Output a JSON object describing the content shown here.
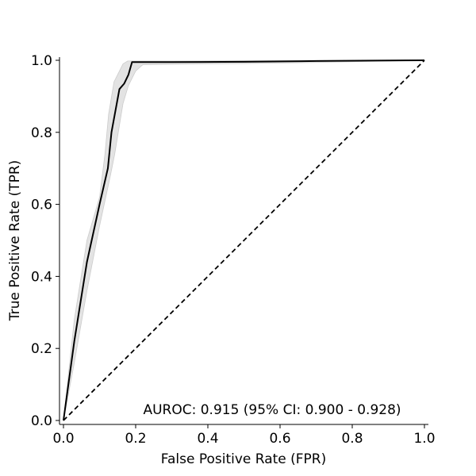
{
  "chart_data": {
    "type": "line",
    "title": "",
    "xlabel": "False Positive Rate (FPR)",
    "ylabel": "True Positive Rate (TPR)",
    "xlim": [
      0,
      1
    ],
    "ylim": [
      0,
      1
    ],
    "xticks": [
      "0.0",
      "0.2",
      "0.4",
      "0.6",
      "0.8",
      "1.0"
    ],
    "yticks": [
      "0.0",
      "0.2",
      "0.4",
      "0.6",
      "0.8",
      "1.0"
    ],
    "grid": false,
    "annotation": "AUROC: 0.915 (95% CI: 0.900 - 0.928)",
    "colors": {
      "roc_line": "#000000",
      "ci_band": "#cccccc",
      "diagonal": "#000000"
    },
    "roc": {
      "x": [
        0.0,
        0.03,
        0.065,
        0.1,
        0.123,
        0.133,
        0.155,
        0.168,
        0.18,
        0.19,
        0.3,
        0.5,
        0.7,
        1.0
      ],
      "y": [
        0.0,
        0.22,
        0.44,
        0.6,
        0.7,
        0.8,
        0.92,
        0.935,
        0.96,
        0.995,
        0.995,
        0.996,
        0.998,
        1.0
      ]
    },
    "ci_upper": {
      "x": [
        0.0,
        0.03,
        0.065,
        0.1,
        0.115,
        0.125,
        0.14,
        0.15,
        0.165,
        0.178,
        0.3,
        0.5,
        0.7,
        1.0
      ],
      "y": [
        0.0,
        0.28,
        0.5,
        0.62,
        0.74,
        0.85,
        0.94,
        0.96,
        0.99,
        0.998,
        0.998,
        0.999,
        0.999,
        1.0
      ]
    },
    "ci_lower": {
      "x": [
        0.0,
        0.03,
        0.065,
        0.1,
        0.13,
        0.142,
        0.165,
        0.18,
        0.2,
        0.22,
        0.3,
        0.5,
        0.7,
        1.0
      ],
      "y": [
        0.0,
        0.16,
        0.36,
        0.54,
        0.68,
        0.74,
        0.88,
        0.93,
        0.97,
        0.988,
        0.989,
        0.991,
        0.994,
        1.0
      ]
    },
    "diagonal": {
      "x": [
        0.0,
        1.0
      ],
      "y": [
        0.0,
        1.0
      ]
    }
  }
}
